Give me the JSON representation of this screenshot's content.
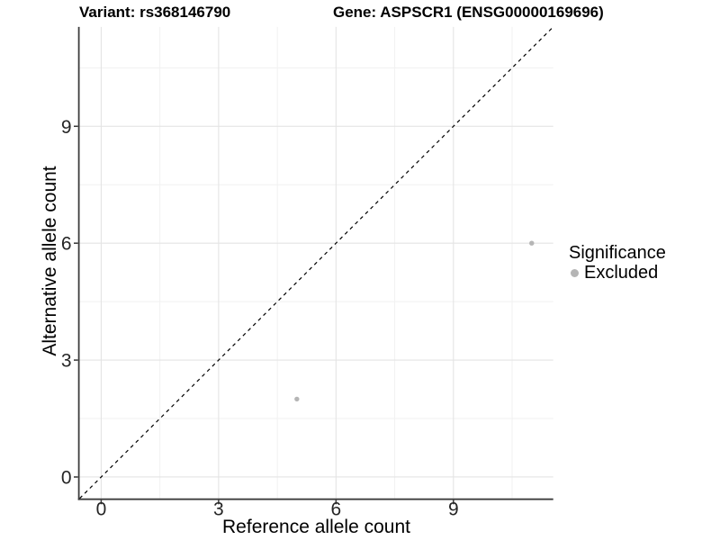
{
  "chart_data": {
    "type": "scatter",
    "title_left": "Variant: rs368146790",
    "title_right": "Gene: ASPSCR1 (ENSG00000169696)",
    "xlabel": "Reference allele count",
    "ylabel": "Alternative allele count",
    "xlim": [
      -0.55,
      11.55
    ],
    "ylim": [
      -0.55,
      11.55
    ],
    "x_ticks": [
      0,
      3,
      6,
      9
    ],
    "y_ticks": [
      0,
      3,
      6,
      9
    ],
    "x_minor_gridlines": [
      1.5,
      4.5,
      7.5,
      10.5
    ],
    "y_minor_gridlines": [
      1.5,
      4.5,
      7.5,
      10.5
    ],
    "grid": "on",
    "series": [
      {
        "name": "Excluded",
        "color": "#b5b5b5",
        "points": [
          [
            5,
            2
          ],
          [
            11,
            6
          ]
        ]
      }
    ],
    "reference_line": {
      "kind": "identity y=x",
      "style": "dashed",
      "color": "#000000"
    },
    "legend": {
      "title": "Significance",
      "position": "right",
      "entries": [
        "Excluded"
      ]
    }
  },
  "colors": {
    "background": "#ffffff",
    "gridline_major": "#e4e4e4",
    "gridline_minor": "#f1f1f1",
    "axis_line": "#3d3d3d",
    "tick_mark": "#333333",
    "tick_label": "#262626"
  }
}
